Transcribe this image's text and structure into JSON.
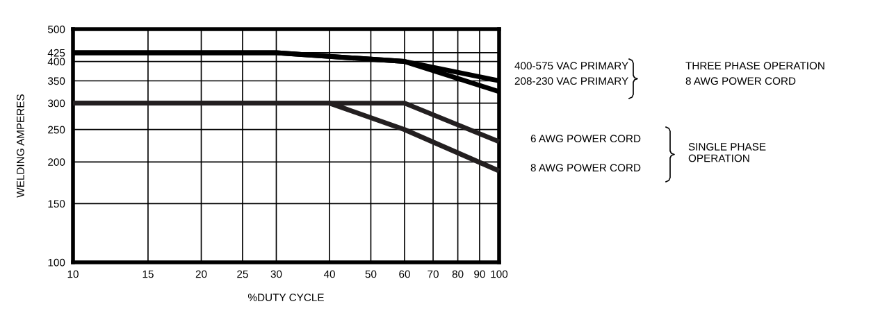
{
  "chart_data": {
    "type": "line",
    "xlabel": "%DUTY CYCLE",
    "ylabel": "WELDING AMPERES",
    "log": "xy",
    "xlim": [
      10,
      100
    ],
    "ylim": [
      100,
      500
    ],
    "xticks": [
      10,
      15,
      20,
      25,
      30,
      40,
      50,
      60,
      70,
      80,
      90,
      100
    ],
    "yticks": [
      100,
      150,
      200,
      250,
      300,
      350,
      400,
      425,
      500
    ],
    "grid": true,
    "legend": "right",
    "marker": "none",
    "line_style": "solid",
    "series": [
      {
        "name": "400-575 VAC PRIMARY",
        "color": "#000000",
        "x": [
          10,
          30,
          60,
          100
        ],
        "values": [
          425,
          425,
          400,
          350
        ]
      },
      {
        "name": "208-230 VAC PRIMARY",
        "color": "#000000",
        "x": [
          10,
          30,
          60,
          100
        ],
        "values": [
          425,
          425,
          400,
          325
        ]
      },
      {
        "name": "6 AWG POWER CORD",
        "color": "#231f20",
        "x": [
          10,
          60,
          100
        ],
        "values": [
          300,
          300,
          230
        ]
      },
      {
        "name": "8 AWG POWER CORD",
        "color": "#231f20",
        "x": [
          10,
          40,
          60,
          100
        ],
        "values": [
          300,
          300,
          250,
          188
        ]
      }
    ],
    "annotations": [
      "THREE PHASE OPERATION",
      "8 AWG POWER CORD",
      "SINGLE PHASE\nOPERATION"
    ]
  }
}
